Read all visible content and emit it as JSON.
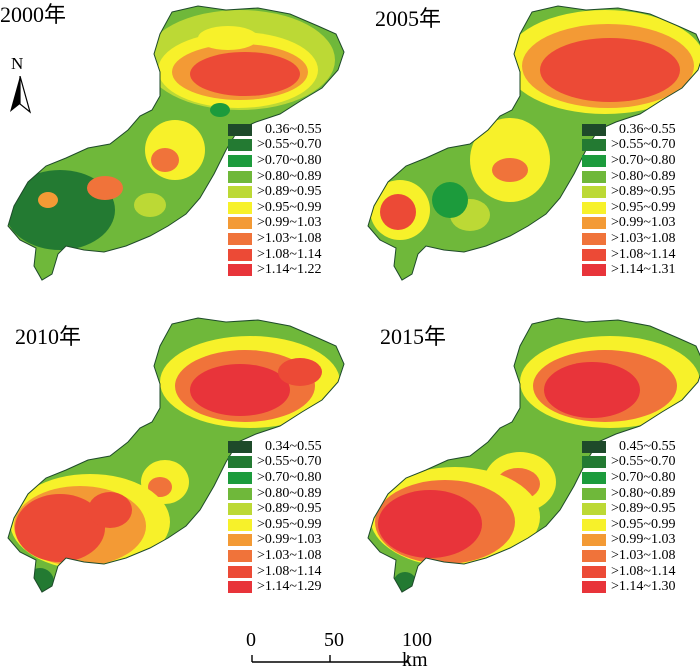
{
  "colors": {
    "c1": "#1e4a2a",
    "c2": "#237a32",
    "c3": "#1c9b3c",
    "c4": "#6fb83a",
    "c5": "#bcd935",
    "c6": "#f7f12a",
    "c7": "#f39a35",
    "c8": "#f0733a",
    "c9": "#ec4a36",
    "c10": "#e8343a"
  },
  "north_arrow": {
    "label": "N"
  },
  "scale_bar": {
    "ticks": [
      "0",
      "50",
      "100 km"
    ]
  },
  "panels": [
    {
      "year": "2000年",
      "legend": [
        "0.36~0.55",
        ">0.55~0.70",
        ">0.70~0.80",
        ">0.80~0.89",
        ">0.89~0.95",
        ">0.95~0.99",
        ">0.99~1.03",
        ">1.03~1.08",
        ">1.08~1.14",
        ">1.14~1.22"
      ]
    },
    {
      "year": "2005年",
      "legend": [
        "0.36~0.55",
        ">0.55~0.70",
        ">0.70~0.80",
        ">0.80~0.89",
        ">0.89~0.95",
        ">0.95~0.99",
        ">0.99~1.03",
        ">1.03~1.08",
        ">1.08~1.14",
        ">1.14~1.31"
      ]
    },
    {
      "year": "2010年",
      "legend": [
        "0.34~0.55",
        ">0.55~0.70",
        ">0.70~0.80",
        ">0.80~0.89",
        ">0.89~0.95",
        ">0.95~0.99",
        ">0.99~1.03",
        ">1.03~1.08",
        ">1.08~1.14",
        ">1.14~1.29"
      ]
    },
    {
      "year": "2015年",
      "legend": [
        "0.45~0.55",
        ">0.55~0.70",
        ">0.70~0.80",
        ">0.80~0.89",
        ">0.89~0.95",
        ">0.95~0.99",
        ">0.99~1.03",
        ">1.03~1.08",
        ">1.08~1.14",
        ">1.14~1.30"
      ]
    }
  ]
}
